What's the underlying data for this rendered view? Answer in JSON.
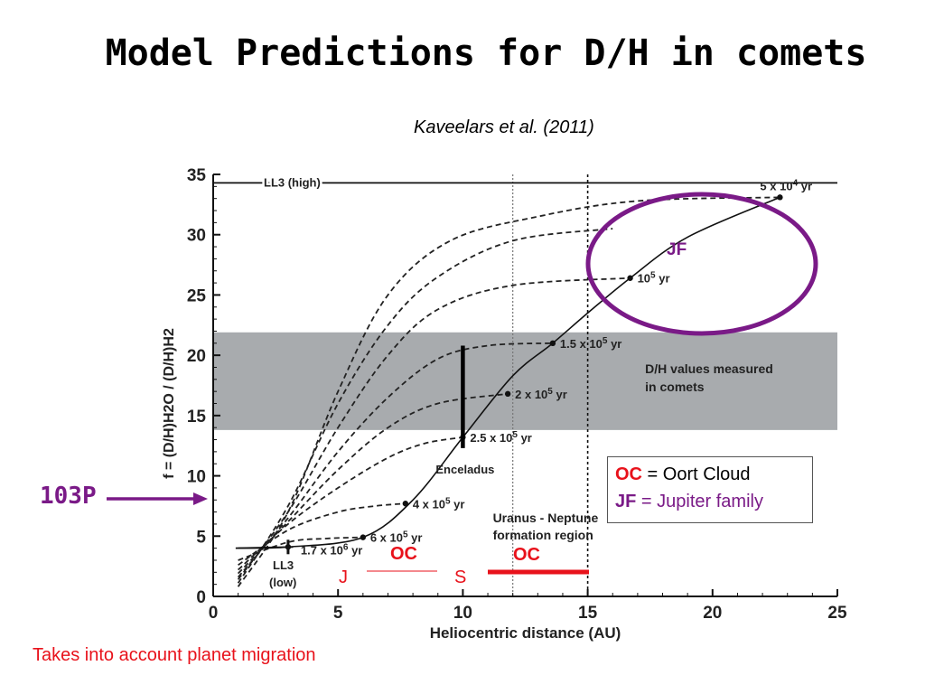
{
  "slide": {
    "title": "Model Predictions for D/H in comets",
    "citation": "Kaveelars et al. (2011)",
    "footnote": "Takes into account planet migration",
    "comet_marker_label": "103P",
    "jf_circle_label": "JF",
    "oc_inner_label": "OC",
    "oc_outer_label": "OC",
    "j_label": "J",
    "s_label": "S"
  },
  "legend": {
    "oc_abbr": "OC",
    "oc_def": " = Oort Cloud",
    "jf_abbr": "JF",
    "jf_def": " = Jupiter family"
  },
  "colors": {
    "accent_red": "#e8121b",
    "accent_purple": "#7a1a87",
    "band_gray": "#a8abae"
  },
  "chart_data": {
    "type": "line",
    "xlabel": "Heliocentric distance (AU)",
    "ylabel": "f = (D/H)H2O / (D/H)H2",
    "xlim": [
      0,
      25
    ],
    "ylim": [
      0,
      35
    ],
    "x_ticks": [
      0,
      5,
      10,
      15,
      20,
      25
    ],
    "y_ticks": [
      0,
      5,
      10,
      15,
      20,
      25,
      30,
      35
    ],
    "band": {
      "y": [
        13.8,
        21.9
      ],
      "label_line1": "D/H values measured",
      "label_line2": "in comets"
    },
    "vertical_lines": [
      {
        "x": 12,
        "style": "dotted"
      },
      {
        "x": 15,
        "style": "dotted"
      }
    ],
    "region_label_line1": "Uranus - Neptune",
    "region_label_line2": "formation region",
    "ll3_high": {
      "y": 34.3,
      "label": "LL3 (high)"
    },
    "ll3_low_label_line1": "LL3",
    "ll3_low_label_line2": "(low)",
    "enceladus": {
      "x": 10,
      "y_range": [
        12.3,
        20.8
      ],
      "label": "Enceladus"
    },
    "time_curve": {
      "points": [
        [
          1,
          4
        ],
        [
          3,
          4.1
        ],
        [
          6,
          4.9
        ],
        [
          8,
          8
        ],
        [
          10,
          13.2
        ],
        [
          12,
          18.3
        ],
        [
          13.6,
          21
        ],
        [
          15,
          23.5
        ],
        [
          16.7,
          26.4
        ],
        [
          19,
          29.8
        ],
        [
          22.7,
          33.1
        ]
      ],
      "markers": [
        {
          "x": 3,
          "y": 4.1,
          "label": "1.7 x 10^6 yr"
        },
        {
          "x": 6,
          "y": 4.9,
          "label": "6 x 10^5 yr"
        },
        {
          "x": 7.7,
          "y": 7.7,
          "label": "4 x 10^5 yr"
        },
        {
          "x": 10,
          "y": 13.2,
          "label": "2.5 x 10^5 yr"
        },
        {
          "x": 11.8,
          "y": 16.8,
          "label": "2 x 10^5 yr"
        },
        {
          "x": 13.6,
          "y": 21.0,
          "label": "1.5 x 10^5 yr"
        },
        {
          "x": 16.7,
          "y": 26.4,
          "label": "10^5 yr"
        },
        {
          "x": 22.7,
          "y": 33.1,
          "label": "5 x 10^4 yr"
        }
      ]
    },
    "dashed_series": [
      {
        "points": [
          [
            1,
            0.8
          ],
          [
            3,
            7
          ],
          [
            5,
            17
          ],
          [
            7,
            25
          ],
          [
            9.5,
            29.5
          ],
          [
            13,
            31.5
          ],
          [
            17,
            32.8
          ],
          [
            22.7,
            33.1
          ]
        ]
      },
      {
        "points": [
          [
            1,
            1.1
          ],
          [
            3,
            7.5
          ],
          [
            5,
            16
          ],
          [
            7,
            22.5
          ],
          [
            9,
            26.5
          ],
          [
            12,
            29.5
          ],
          [
            16,
            30.5
          ]
        ]
      },
      {
        "points": [
          [
            1,
            1.4
          ],
          [
            3,
            7
          ],
          [
            5,
            14
          ],
          [
            7,
            20
          ],
          [
            9,
            23.8
          ],
          [
            12,
            25.8
          ],
          [
            16.7,
            26.4
          ]
        ]
      },
      {
        "points": [
          [
            1,
            1.6
          ],
          [
            3,
            6.5
          ],
          [
            5,
            12
          ],
          [
            7,
            16.5
          ],
          [
            9,
            19.7
          ],
          [
            11,
            20.8
          ],
          [
            13.6,
            21.0
          ]
        ]
      },
      {
        "points": [
          [
            1,
            1.9
          ],
          [
            3,
            6.2
          ],
          [
            5,
            10.5
          ],
          [
            7,
            14
          ],
          [
            9,
            16
          ],
          [
            11.8,
            16.8
          ]
        ]
      },
      {
        "points": [
          [
            1,
            2.2
          ],
          [
            3,
            6
          ],
          [
            5,
            9
          ],
          [
            7,
            11.5
          ],
          [
            8.5,
            12.7
          ],
          [
            10,
            13.2
          ]
        ]
      },
      {
        "points": [
          [
            1,
            2.6
          ],
          [
            3,
            5.5
          ],
          [
            5,
            7
          ],
          [
            6.5,
            7.5
          ],
          [
            7.7,
            7.7
          ]
        ]
      },
      {
        "points": [
          [
            1,
            3.0
          ],
          [
            3,
            4.5
          ],
          [
            4.5,
            4.8
          ],
          [
            6,
            4.9
          ]
        ]
      }
    ]
  }
}
